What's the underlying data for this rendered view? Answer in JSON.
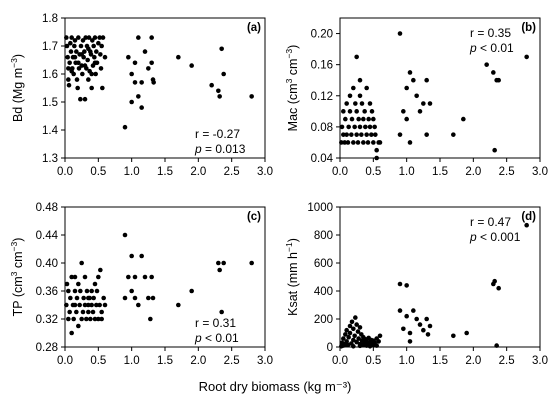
{
  "figure": {
    "x_title": "Root dry biomass (kg m⁻³)"
  },
  "chart_data": [
    {
      "type": "scatter",
      "panel": "(a)",
      "ylabel_main": "Bd (Mg m",
      "ylabel_sup": "−3",
      "ylabel_end": ")",
      "xlim": [
        0,
        3.0
      ],
      "ylim": [
        1.3,
        1.8
      ],
      "xticks": [
        "0.0",
        "0.5",
        "1.0",
        "1.5",
        "2.0",
        "2.5",
        "3.0"
      ],
      "yticks": [
        "1.3",
        "1.4",
        "1.5",
        "1.6",
        "1.7",
        "1.8"
      ],
      "yvals": [
        1.3,
        1.4,
        1.5,
        1.6,
        1.7,
        1.8
      ],
      "stat_r": "r = -0.27",
      "stat_p": "= 0.013",
      "stat_pos": "bottom-right",
      "points": [
        [
          0.02,
          1.73
        ],
        [
          0.03,
          1.7
        ],
        [
          0.04,
          1.66
        ],
        [
          0.05,
          1.62
        ],
        [
          0.05,
          1.58
        ],
        [
          0.06,
          1.56
        ],
        [
          0.07,
          1.64
        ],
        [
          0.08,
          1.71
        ],
        [
          0.09,
          1.68
        ],
        [
          0.1,
          1.73
        ],
        [
          0.11,
          1.62
        ],
        [
          0.12,
          1.66
        ],
        [
          0.13,
          1.6
        ],
        [
          0.14,
          1.7
        ],
        [
          0.15,
          1.72
        ],
        [
          0.16,
          1.64
        ],
        [
          0.17,
          1.68
        ],
        [
          0.18,
          1.58
        ],
        [
          0.19,
          1.55
        ],
        [
          0.2,
          1.73
        ],
        [
          0.21,
          1.62
        ],
        [
          0.22,
          1.67
        ],
        [
          0.23,
          1.51
        ],
        [
          0.24,
          1.7
        ],
        [
          0.25,
          1.63
        ],
        [
          0.26,
          1.6
        ],
        [
          0.27,
          1.72
        ],
        [
          0.28,
          1.66
        ],
        [
          0.29,
          1.68
        ],
        [
          0.3,
          1.51
        ],
        [
          0.31,
          1.73
        ],
        [
          0.32,
          1.62
        ],
        [
          0.33,
          1.7
        ],
        [
          0.34,
          1.65
        ],
        [
          0.35,
          1.58
        ],
        [
          0.36,
          1.73
        ],
        [
          0.37,
          1.61
        ],
        [
          0.38,
          1.68
        ],
        [
          0.39,
          1.67
        ],
        [
          0.4,
          1.55
        ],
        [
          0.41,
          1.72
        ],
        [
          0.42,
          1.63
        ],
        [
          0.43,
          1.7
        ],
        [
          0.44,
          1.66
        ],
        [
          0.45,
          1.73
        ],
        [
          0.46,
          1.6
        ],
        [
          0.47,
          1.68
        ],
        [
          0.48,
          1.64
        ],
        [
          0.5,
          1.71
        ],
        [
          0.52,
          1.73
        ],
        [
          0.53,
          1.67
        ],
        [
          0.54,
          1.62
        ],
        [
          0.55,
          1.7
        ],
        [
          0.56,
          1.55
        ],
        [
          0.57,
          1.73
        ],
        [
          0.6,
          1.66
        ],
        [
          0.15,
          1.66
        ],
        [
          0.25,
          1.67
        ],
        [
          0.35,
          1.69
        ],
        [
          0.45,
          1.64
        ],
        [
          0.1,
          1.61
        ],
        [
          0.2,
          1.64
        ],
        [
          0.3,
          1.63
        ],
        [
          0.4,
          1.6
        ],
        [
          0.9,
          1.41
        ],
        [
          0.95,
          1.66
        ],
        [
          1.0,
          1.5
        ],
        [
          1.0,
          1.6
        ],
        [
          1.05,
          1.64
        ],
        [
          1.05,
          1.57
        ],
        [
          1.1,
          1.73
        ],
        [
          1.1,
          1.52
        ],
        [
          1.15,
          1.57
        ],
        [
          1.15,
          1.48
        ],
        [
          1.2,
          1.68
        ],
        [
          1.25,
          1.62
        ],
        [
          1.3,
          1.73
        ],
        [
          1.3,
          1.64
        ],
        [
          1.32,
          1.58
        ],
        [
          1.33,
          1.57
        ],
        [
          1.7,
          1.66
        ],
        [
          1.9,
          1.63
        ],
        [
          2.2,
          1.56
        ],
        [
          2.3,
          1.54
        ],
        [
          2.32,
          1.52
        ],
        [
          2.35,
          1.69
        ],
        [
          2.38,
          1.6
        ],
        [
          2.8,
          1.52
        ]
      ]
    },
    {
      "type": "scatter",
      "panel": "(b)",
      "ylabel_main": "Mac (cm",
      "ylabel_sup": "3",
      "ylabel_mid": " cm",
      "ylabel_sup2": "−3",
      "ylabel_end": ")",
      "xlim": [
        0,
        3.0
      ],
      "ylim": [
        0.04,
        0.22
      ],
      "xticks": [
        "0.0",
        "0.5",
        "1.0",
        "1.5",
        "2.0",
        "2.5",
        "3.0"
      ],
      "yticks": [
        "0.04",
        "0.08",
        "0.12",
        "0.16",
        "0.20"
      ],
      "yvals": [
        0.04,
        0.08,
        0.12,
        0.16,
        0.2
      ],
      "stat_r": "r = 0.35",
      "stat_p": "< 0.01",
      "stat_pos": "top-right",
      "points": [
        [
          0.02,
          0.06
        ],
        [
          0.03,
          0.08
        ],
        [
          0.05,
          0.07
        ],
        [
          0.05,
          0.1
        ],
        [
          0.07,
          0.06
        ],
        [
          0.08,
          0.09
        ],
        [
          0.1,
          0.07
        ],
        [
          0.1,
          0.11
        ],
        [
          0.12,
          0.06
        ],
        [
          0.13,
          0.08
        ],
        [
          0.15,
          0.1
        ],
        [
          0.15,
          0.12
        ],
        [
          0.17,
          0.07
        ],
        [
          0.18,
          0.09
        ],
        [
          0.2,
          0.06
        ],
        [
          0.2,
          0.13
        ],
        [
          0.22,
          0.08
        ],
        [
          0.23,
          0.11
        ],
        [
          0.25,
          0.07
        ],
        [
          0.25,
          0.1
        ],
        [
          0.27,
          0.06
        ],
        [
          0.28,
          0.09
        ],
        [
          0.3,
          0.08
        ],
        [
          0.3,
          0.14
        ],
        [
          0.32,
          0.07
        ],
        [
          0.33,
          0.11
        ],
        [
          0.35,
          0.06
        ],
        [
          0.35,
          0.09
        ],
        [
          0.37,
          0.1
        ],
        [
          0.38,
          0.08
        ],
        [
          0.4,
          0.07
        ],
        [
          0.4,
          0.13
        ],
        [
          0.42,
          0.06
        ],
        [
          0.43,
          0.09
        ],
        [
          0.45,
          0.08
        ],
        [
          0.45,
          0.11
        ],
        [
          0.47,
          0.07
        ],
        [
          0.48,
          0.1
        ],
        [
          0.5,
          0.06
        ],
        [
          0.5,
          0.09
        ],
        [
          0.52,
          0.08
        ],
        [
          0.53,
          0.07
        ],
        [
          0.55,
          0.04
        ],
        [
          0.55,
          0.05
        ],
        [
          0.58,
          0.06
        ],
        [
          0.6,
          0.06
        ],
        [
          0.25,
          0.17
        ],
        [
          0.3,
          0.12
        ],
        [
          0.9,
          0.2
        ],
        [
          0.9,
          0.07
        ],
        [
          0.95,
          0.1
        ],
        [
          1.0,
          0.13
        ],
        [
          1.0,
          0.09
        ],
        [
          1.05,
          0.15
        ],
        [
          1.05,
          0.06
        ],
        [
          1.1,
          0.14
        ],
        [
          1.15,
          0.12
        ],
        [
          1.2,
          0.1
        ],
        [
          1.25,
          0.11
        ],
        [
          1.3,
          0.07
        ],
        [
          1.3,
          0.14
        ],
        [
          1.35,
          0.11
        ],
        [
          1.7,
          0.07
        ],
        [
          1.85,
          0.09
        ],
        [
          2.2,
          0.16
        ],
        [
          2.3,
          0.15
        ],
        [
          2.32,
          0.05
        ],
        [
          2.35,
          0.14
        ],
        [
          2.38,
          0.14
        ],
        [
          2.8,
          0.17
        ]
      ]
    },
    {
      "type": "scatter",
      "panel": "(c)",
      "ylabel_main": "TP (cm",
      "ylabel_sup": "3",
      "ylabel_mid": " cm",
      "ylabel_sup2": "−3",
      "ylabel_end": ")",
      "xlim": [
        0,
        3.0
      ],
      "ylim": [
        0.28,
        0.48
      ],
      "xticks": [
        "0.0",
        "0.5",
        "1.0",
        "1.5",
        "2.0",
        "2.5",
        "3.0"
      ],
      "yticks": [
        "0.28",
        "0.32",
        "0.36",
        "0.40",
        "0.44",
        "0.48"
      ],
      "yvals": [
        0.28,
        0.32,
        0.36,
        0.4,
        0.44,
        0.48
      ],
      "stat_r": "r = 0.31",
      "stat_p": "< 0.01",
      "stat_pos": "bottom-right",
      "points": [
        [
          0.02,
          0.34
        ],
        [
          0.03,
          0.37
        ],
        [
          0.05,
          0.32
        ],
        [
          0.05,
          0.36
        ],
        [
          0.07,
          0.33
        ],
        [
          0.08,
          0.35
        ],
        [
          0.1,
          0.3
        ],
        [
          0.1,
          0.38
        ],
        [
          0.12,
          0.34
        ],
        [
          0.13,
          0.32
        ],
        [
          0.15,
          0.36
        ],
        [
          0.15,
          0.38
        ],
        [
          0.17,
          0.33
        ],
        [
          0.18,
          0.35
        ],
        [
          0.2,
          0.31
        ],
        [
          0.2,
          0.37
        ],
        [
          0.22,
          0.34
        ],
        [
          0.23,
          0.36
        ],
        [
          0.25,
          0.32
        ],
        [
          0.25,
          0.4
        ],
        [
          0.27,
          0.33
        ],
        [
          0.28,
          0.35
        ],
        [
          0.3,
          0.34
        ],
        [
          0.3,
          0.38
        ],
        [
          0.32,
          0.32
        ],
        [
          0.33,
          0.36
        ],
        [
          0.35,
          0.33
        ],
        [
          0.35,
          0.34
        ],
        [
          0.37,
          0.35
        ],
        [
          0.38,
          0.32
        ],
        [
          0.4,
          0.34
        ],
        [
          0.4,
          0.36
        ],
        [
          0.42,
          0.33
        ],
        [
          0.43,
          0.35
        ],
        [
          0.45,
          0.32
        ],
        [
          0.45,
          0.37
        ],
        [
          0.47,
          0.34
        ],
        [
          0.48,
          0.36
        ],
        [
          0.5,
          0.32
        ],
        [
          0.5,
          0.38
        ],
        [
          0.52,
          0.34
        ],
        [
          0.53,
          0.39
        ],
        [
          0.55,
          0.33
        ],
        [
          0.55,
          0.32
        ],
        [
          0.58,
          0.35
        ],
        [
          0.6,
          0.34
        ],
        [
          0.15,
          0.34
        ],
        [
          0.35,
          0.35
        ],
        [
          0.9,
          0.44
        ],
        [
          0.9,
          0.35
        ],
        [
          0.95,
          0.38
        ],
        [
          1.0,
          0.41
        ],
        [
          1.0,
          0.36
        ],
        [
          1.05,
          0.38
        ],
        [
          1.05,
          0.35
        ],
        [
          1.1,
          0.34
        ],
        [
          1.15,
          0.41
        ],
        [
          1.2,
          0.38
        ],
        [
          1.25,
          0.35
        ],
        [
          1.28,
          0.32
        ],
        [
          1.3,
          0.38
        ],
        [
          1.32,
          0.35
        ],
        [
          1.7,
          0.34
        ],
        [
          1.9,
          0.36
        ],
        [
          2.3,
          0.4
        ],
        [
          2.32,
          0.39
        ],
        [
          2.35,
          0.33
        ],
        [
          2.38,
          0.4
        ],
        [
          2.8,
          0.4
        ]
      ]
    },
    {
      "type": "scatter",
      "panel": "(d)",
      "ylabel_main": "Ksat (mm h",
      "ylabel_sup": "−1",
      "ylabel_end": ")",
      "xlim": [
        0,
        3.0
      ],
      "ylim": [
        0,
        1000
      ],
      "xticks": [
        "0.0",
        "0.5",
        "1.0",
        "1.5",
        "2.0",
        "2.5",
        "3.0"
      ],
      "yticks": [
        "0",
        "200",
        "400",
        "600",
        "800",
        "1000"
      ],
      "yvals": [
        0,
        200,
        400,
        600,
        800,
        1000
      ],
      "stat_r": "r = 0.47",
      "stat_p": "< 0.001",
      "stat_pos": "top-right",
      "points": [
        [
          0.02,
          5
        ],
        [
          0.03,
          30
        ],
        [
          0.05,
          10
        ],
        [
          0.05,
          60
        ],
        [
          0.07,
          20
        ],
        [
          0.08,
          90
        ],
        [
          0.1,
          40
        ],
        [
          0.1,
          120
        ],
        [
          0.12,
          15
        ],
        [
          0.13,
          70
        ],
        [
          0.15,
          150
        ],
        [
          0.15,
          100
        ],
        [
          0.17,
          25
        ],
        [
          0.18,
          180
        ],
        [
          0.2,
          50
        ],
        [
          0.2,
          130
        ],
        [
          0.22,
          80
        ],
        [
          0.23,
          210
        ],
        [
          0.25,
          35
        ],
        [
          0.25,
          160
        ],
        [
          0.27,
          110
        ],
        [
          0.28,
          60
        ],
        [
          0.3,
          140
        ],
        [
          0.3,
          20
        ],
        [
          0.32,
          90
        ],
        [
          0.33,
          45
        ],
        [
          0.35,
          70
        ],
        [
          0.35,
          15
        ],
        [
          0.37,
          30
        ],
        [
          0.38,
          55
        ],
        [
          0.4,
          10
        ],
        [
          0.4,
          40
        ],
        [
          0.42,
          25
        ],
        [
          0.43,
          65
        ],
        [
          0.45,
          5
        ],
        [
          0.45,
          35
        ],
        [
          0.47,
          50
        ],
        [
          0.48,
          20
        ],
        [
          0.5,
          15
        ],
        [
          0.5,
          45
        ],
        [
          0.52,
          30
        ],
        [
          0.55,
          60
        ],
        [
          0.55,
          10
        ],
        [
          0.58,
          40
        ],
        [
          0.6,
          80
        ],
        [
          0.1,
          15
        ],
        [
          0.2,
          5
        ],
        [
          0.3,
          8
        ],
        [
          0.4,
          12
        ],
        [
          0.9,
          450
        ],
        [
          0.9,
          260
        ],
        [
          0.95,
          130
        ],
        [
          1.0,
          440
        ],
        [
          1.0,
          220
        ],
        [
          1.05,
          100
        ],
        [
          1.05,
          40
        ],
        [
          1.1,
          260
        ],
        [
          1.15,
          200
        ],
        [
          1.2,
          160
        ],
        [
          1.25,
          120
        ],
        [
          1.3,
          200
        ],
        [
          1.32,
          90
        ],
        [
          1.35,
          150
        ],
        [
          1.7,
          80
        ],
        [
          1.9,
          100
        ],
        [
          2.3,
          450
        ],
        [
          2.32,
          470
        ],
        [
          2.35,
          10
        ],
        [
          2.38,
          420
        ],
        [
          2.8,
          870
        ]
      ]
    }
  ]
}
